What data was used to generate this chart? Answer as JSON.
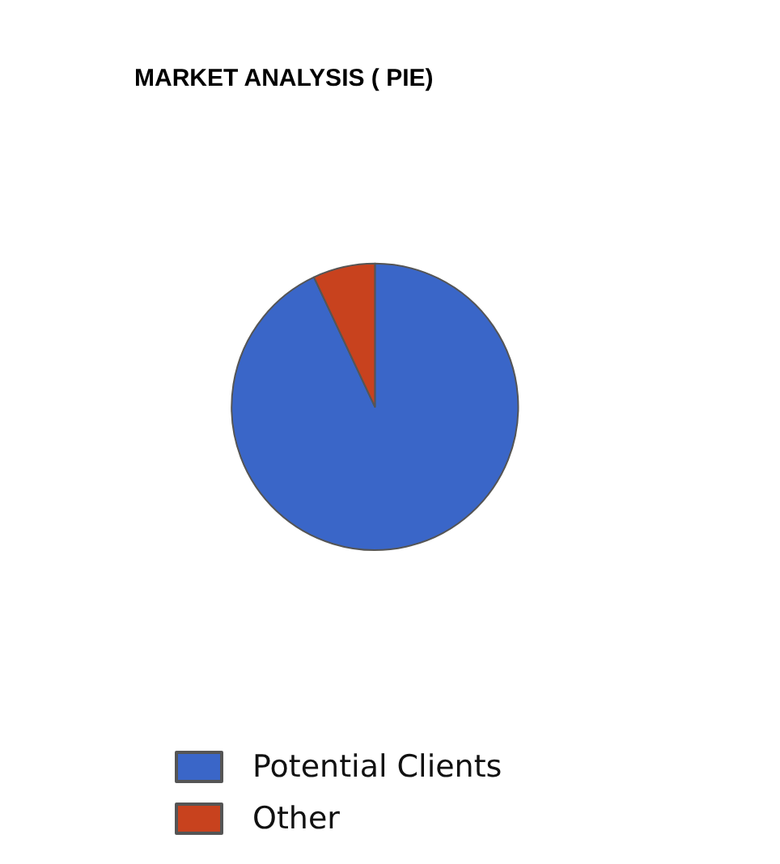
{
  "chart_data": {
    "type": "pie",
    "title": "MARKET ANALYSIS ( PIE)",
    "categories": [
      "Potential Clients",
      "Other"
    ],
    "values": [
      93,
      7
    ],
    "colors": [
      "#3a66c8",
      "#c8421e"
    ],
    "legend": "bottom"
  }
}
